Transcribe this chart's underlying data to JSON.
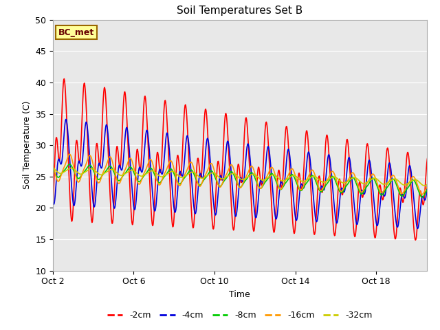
{
  "title": "Soil Temperatures Set B",
  "xlabel": "Time",
  "ylabel": "Soil Temperature (C)",
  "ylim": [
    10,
    50
  ],
  "xlim_days": [
    0,
    18.5
  ],
  "xtick_positions": [
    0,
    4,
    8,
    12,
    16
  ],
  "xtick_labels": [
    "Oct 2",
    "Oct 6",
    "Oct 10",
    "Oct 14",
    "Oct 18"
  ],
  "ytick_positions": [
    10,
    15,
    20,
    25,
    30,
    35,
    40,
    45,
    50
  ],
  "series_labels": [
    "-2cm",
    "-4cm",
    "-8cm",
    "-16cm",
    "-32cm"
  ],
  "series_colors": [
    "#ff0000",
    "#0000dd",
    "#00cc00",
    "#ff9900",
    "#cccc00"
  ],
  "annotation_text": "BC_met",
  "annotation_bg": "#ffff99",
  "annotation_border": "#996600",
  "bg_color": "#e8e8e8",
  "legend_below": true
}
